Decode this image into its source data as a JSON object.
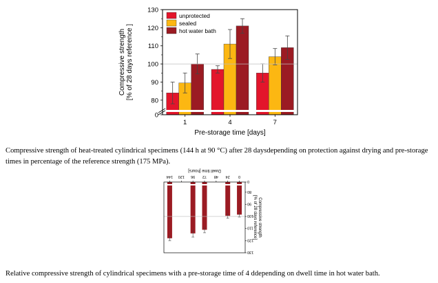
{
  "captions": {
    "figure1": "Compressive strength of heat-treated cylindrical specimens (144 h at 90 °C) after 28 daysdepending on protection against drying and pre-storage times in percentage of the reference strength (175 MPa).",
    "figure2": "Relative compressive strength of cylindrical specimens with a pre-storage time of 4 ddepending on dwell time in hot water bath."
  },
  "colors": {
    "unprotected": "#e3152b",
    "sealed": "#fcb712",
    "hot_water_bath": "#9b1b23",
    "reference_line": "#bdbdbd"
  },
  "chart_data": [
    {
      "type": "bar",
      "title": "",
      "xlabel": "Pre-storage time [days]",
      "ylabel": "Compressive strength\n[% of 28 days reference ]",
      "categories": [
        "1",
        "4",
        "7"
      ],
      "ylim": [
        0,
        130
      ],
      "axis_break": [
        0,
        75
      ],
      "yticks": [
        0,
        80,
        90,
        100,
        110,
        120,
        130
      ],
      "ytick_labels": [
        "0",
        "80",
        "90",
        "100",
        "110",
        "120",
        "130"
      ],
      "reference_line": 100,
      "legend_position": "top-left",
      "series": [
        {
          "name": "unprotected",
          "color": "#e3152b",
          "values": [
            84,
            97,
            95
          ],
          "errors": [
            6,
            2,
            5
          ]
        },
        {
          "name": "sealed",
          "color": "#fcb712",
          "values": [
            89.5,
            111,
            104
          ],
          "errors": [
            5.5,
            8,
            4.5
          ]
        },
        {
          "name": "hot water bath",
          "color": "#9b1b23",
          "values": [
            100,
            121,
            109
          ],
          "errors": [
            5.5,
            4,
            6.5
          ]
        }
      ]
    },
    {
      "type": "bar",
      "title": "",
      "xlabel": "Dwell time [hours]",
      "ylabel": "Compressive strength\n[% of 28 days reference]",
      "orientation": "rotated 180 degrees",
      "categories": [
        "0",
        "24",
        "48",
        "72",
        "96",
        "120",
        "144"
      ],
      "ylim": [
        0,
        130
      ],
      "axis_break": [
        0,
        75
      ],
      "yticks": [
        0,
        80,
        90,
        100,
        110,
        120,
        130
      ],
      "ytick_labels": [
        "0",
        "80",
        "90",
        "100",
        "110",
        "120",
        "130"
      ],
      "reference_line": 100,
      "series": [
        {
          "name": "",
          "color": "#9b1b23",
          "values": [
            98.5,
            99.5,
            null,
            111,
            114,
            null,
            118
          ],
          "errors": [
            2,
            2,
            null,
            2.5,
            3,
            null,
            2
          ]
        }
      ]
    }
  ]
}
